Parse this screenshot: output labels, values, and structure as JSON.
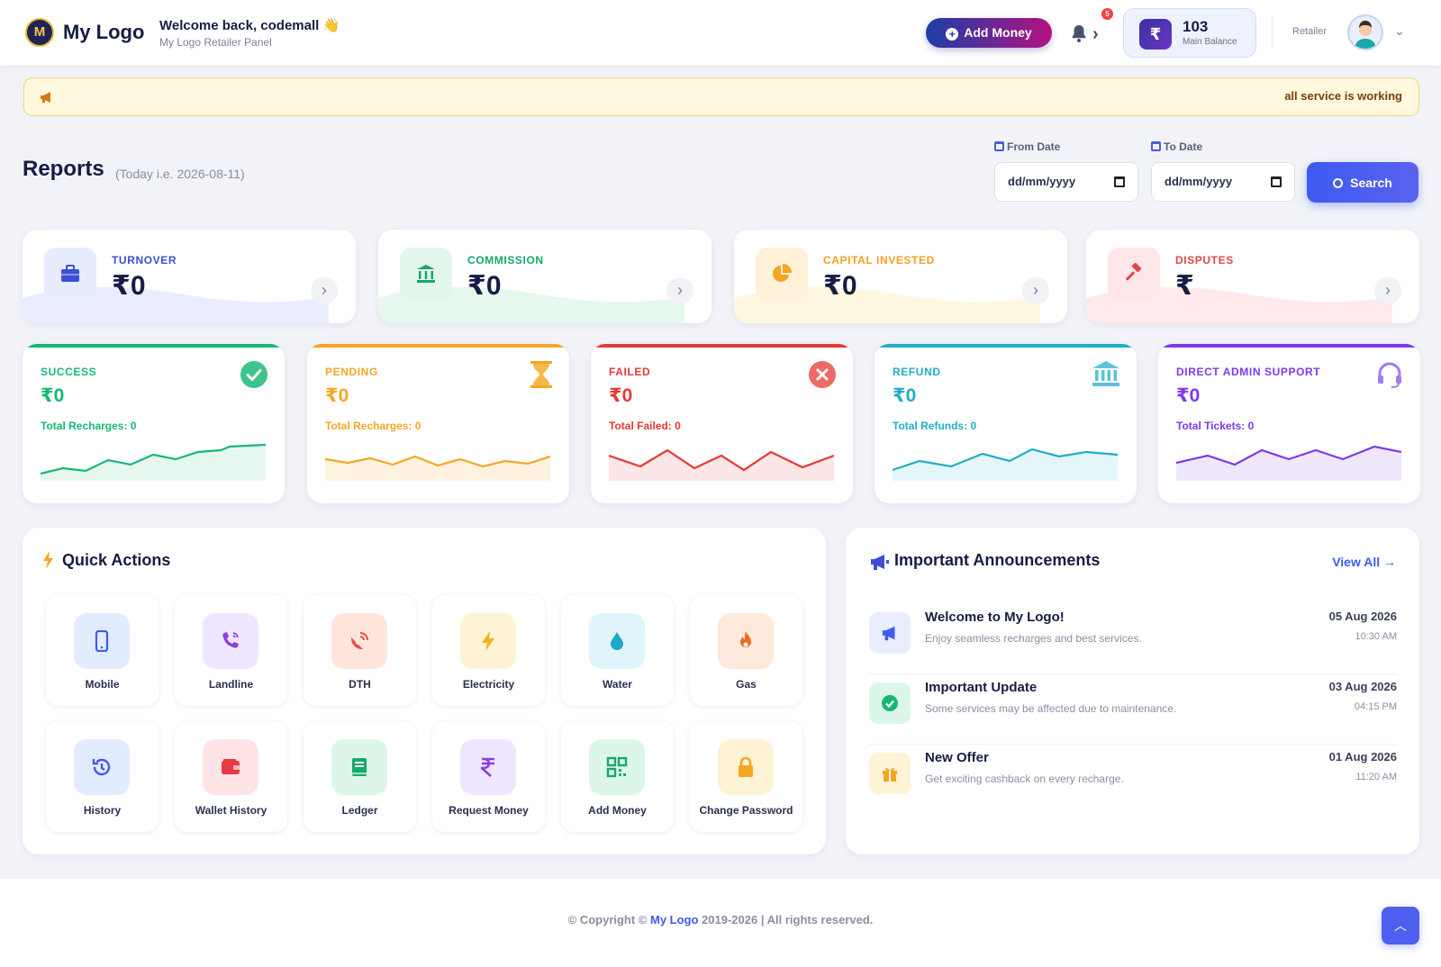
{
  "header": {
    "logo_badge": "M",
    "brand": "My Logo",
    "welcome": "Welcome back, codemall 👋",
    "panel_subtitle": "My Logo Retailer Panel",
    "add_money_label": "Add Money",
    "notification_count": "5",
    "balance_symbol": "₹",
    "balance_amount": "103",
    "balance_label": "Main Balance",
    "role": "Retailer"
  },
  "marquee": {
    "text": "all service is working"
  },
  "reports": {
    "title": "Reports",
    "subtitle": "(Today i.e. 2026-08-11)",
    "from_label": "From Date",
    "to_label": "To Date",
    "from_value": "dd/mm/yyyy",
    "to_value": "dd/mm/yyyy",
    "search_label": "Search"
  },
  "summary_cards": [
    {
      "label": "TURNOVER",
      "value": "₹0",
      "color": "#3d4fd6",
      "icon": "briefcase-icon"
    },
    {
      "label": "COMMISSION",
      "value": "₹0",
      "color": "#16a86a",
      "icon": "bank-icon"
    },
    {
      "label": "CAPITAL INVESTED",
      "value": "₹0",
      "color": "#f0a020",
      "icon": "pie-chart-icon"
    },
    {
      "label": "DISPUTES",
      "value": "₹",
      "color": "#e04848",
      "icon": "gavel-icon"
    }
  ],
  "status_cards": [
    {
      "label": "SUCCESS",
      "value": "₹0",
      "sub": "Total Recharges: 0",
      "color": "#16b873",
      "icon": "check-circle-icon"
    },
    {
      "label": "PENDING",
      "value": "₹0",
      "sub": "Total Recharges: 0",
      "color": "#f5a623",
      "icon": "hourglass-icon"
    },
    {
      "label": "FAILED",
      "value": "₹0",
      "sub": "Total Failed: 0",
      "color": "#e53935",
      "icon": "x-circle-icon"
    },
    {
      "label": "REFUND",
      "value": "₹0",
      "sub": "Total Refunds: 0",
      "color": "#22aec5",
      "icon": "bank-icon"
    },
    {
      "label": "DIRECT ADMIN SUPPORT",
      "value": "₹0",
      "sub": "Total Tickets: 0",
      "color": "#7c3aed",
      "icon": "headset-icon"
    }
  ],
  "quick_actions": {
    "title": "Quick Actions",
    "items": [
      {
        "label": "Mobile",
        "icon": "mobile-icon",
        "bg": "#e3ecff",
        "fg": "#3d5af1"
      },
      {
        "label": "Landline",
        "icon": "phone-icon",
        "bg": "#efe6ff",
        "fg": "#8b3fe0"
      },
      {
        "label": "DTH",
        "icon": "satellite-dish-icon",
        "bg": "#ffe6dd",
        "fg": "#ef4a3a"
      },
      {
        "label": "Electricity",
        "icon": "bolt-icon",
        "bg": "#fff3d6",
        "fg": "#f5b020"
      },
      {
        "label": "Water",
        "icon": "water-drop-icon",
        "bg": "#dff4fb",
        "fg": "#1aa8c8"
      },
      {
        "label": "Gas",
        "icon": "flame-icon",
        "bg": "#ffe8dc",
        "fg": "#f06a20"
      },
      {
        "label": "History",
        "icon": "history-icon",
        "bg": "#e3ecff",
        "fg": "#3d5af1"
      },
      {
        "label": "Wallet History",
        "icon": "wallet-icon",
        "bg": "#ffe4e6",
        "fg": "#e53945"
      },
      {
        "label": "Ledger",
        "icon": "book-icon",
        "bg": "#dcf7ea",
        "fg": "#16a86a"
      },
      {
        "label": "Request Money",
        "icon": "rupee-icon",
        "bg": "#efe6ff",
        "fg": "#8b3fe0"
      },
      {
        "label": "Add Money",
        "icon": "qr-code-icon",
        "bg": "#dcf7ea",
        "fg": "#16a86a"
      },
      {
        "label": "Change Password",
        "icon": "lock-icon",
        "bg": "#fff3d6",
        "fg": "#f5a623"
      }
    ]
  },
  "announcements": {
    "title": "Important Announcements",
    "view_all": "View All →",
    "items": [
      {
        "title": "Welcome to My Logo!",
        "desc": "Enjoy seamless recharges and best services.",
        "date": "05 Aug 2026",
        "time": "10:30 AM",
        "icon": "megaphone-icon",
        "bg": "#e8edff",
        "fg": "#3d5af1"
      },
      {
        "title": "Important Update",
        "desc": "Some services may be affected due to maintenance.",
        "date": "03 Aug 2026",
        "time": "04:15 PM",
        "icon": "check-circle-icon",
        "bg": "#dcf7ea",
        "fg": "#16b873"
      },
      {
        "title": "New Offer",
        "desc": "Get exciting cashback on every recharge.",
        "date": "01 Aug 2026",
        "time": "11:20 AM",
        "icon": "gift-icon",
        "bg": "#fff3d6",
        "fg": "#f5a623"
      }
    ]
  },
  "footer": {
    "copy_prefix": "© Copyright ©",
    "brand": "My Logo",
    "copy_suffix": "2019-2026 | All rights reserved."
  }
}
